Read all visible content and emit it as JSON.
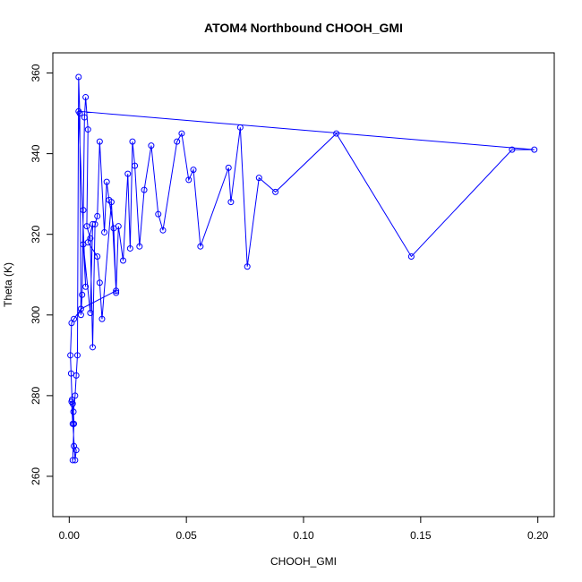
{
  "chart_data": {
    "type": "scatter",
    "title": "ATOM4 Northbound CHOOH_GMI",
    "xlabel": "CHOOH_GMI",
    "ylabel": "Theta (K)",
    "xlim": [
      -0.007,
      0.207
    ],
    "ylim": [
      250,
      365
    ],
    "x_ticks": [
      0.0,
      0.05,
      0.1,
      0.15,
      0.2
    ],
    "x_tick_labels": [
      "0.00",
      "0.05",
      "0.10",
      "0.15",
      "0.20"
    ],
    "y_ticks": [
      260,
      280,
      300,
      320,
      340,
      360
    ],
    "y_tick_labels": [
      "260",
      "280",
      "300",
      "320",
      "340",
      "360"
    ],
    "grid": false,
    "series_color": "#0000ff",
    "point_style": "open-circle-connected",
    "series": [
      {
        "x": [
          0.0015,
          0.002,
          0.0018,
          0.0025,
          0.003,
          0.0035,
          0.004,
          0.0045,
          0.005,
          0.0055,
          0.006,
          0.0065,
          0.007,
          0.008,
          0.0075,
          0.009,
          0.01,
          0.011,
          0.012,
          0.013,
          0.015,
          0.016,
          0.017,
          0.019,
          0.02,
          0.021,
          0.023,
          0.025,
          0.026,
          0.027,
          0.028,
          0.03,
          0.032,
          0.035,
          0.038,
          0.04,
          0.046,
          0.048,
          0.051,
          0.053,
          0.056,
          0.068,
          0.069,
          0.073,
          0.076,
          0.081,
          0.088,
          0.114,
          0.146,
          0.189,
          0.1985,
          0.004,
          0.007,
          0.006,
          0.009,
          0.01,
          0.008,
          0.012,
          0.013,
          0.014,
          0.018,
          0.02,
          0.005,
          0.002,
          0.001,
          0.0005,
          0.0008,
          0.0012,
          0.0015,
          0.002,
          0.003,
          0.0025,
          0.001,
          0.0015
        ],
        "y": [
          264.0,
          273.0,
          276.0,
          280.0,
          285.0,
          290.0,
          359.0,
          350.0,
          300.0,
          305.0,
          326.0,
          349.0,
          354.0,
          346.0,
          322.0,
          319.0,
          292.0,
          322.5,
          324.5,
          343.0,
          320.5,
          333.0,
          328.5,
          321.5,
          305.5,
          322.0,
          313.5,
          335.0,
          316.5,
          343.0,
          337.0,
          317.0,
          331.0,
          342.0,
          325.0,
          321.0,
          343.0,
          345.0,
          333.5,
          336.0,
          317.0,
          336.5,
          328.0,
          346.5,
          312.0,
          334.0,
          330.5,
          345.0,
          314.5,
          341.0,
          341.0,
          350.5,
          307.0,
          317.5,
          300.5,
          322.5,
          318.0,
          314.5,
          308.0,
          299.0,
          328.0,
          306.0,
          301.5,
          299.0,
          298.0,
          290.0,
          285.5,
          279.0,
          278.0,
          267.5,
          266.5,
          264.0,
          278.5,
          273.0
        ]
      }
    ]
  }
}
